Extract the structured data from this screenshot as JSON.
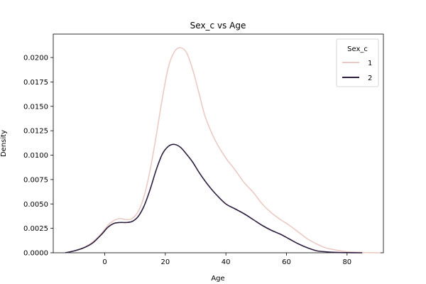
{
  "chart_data": {
    "type": "line",
    "title": "Sex_c vs Age",
    "xlabel": "Age",
    "ylabel": "Density",
    "xlim": [
      -17,
      92
    ],
    "ylim": [
      0,
      0.0224
    ],
    "xticks": [
      0,
      20,
      40,
      60,
      80
    ],
    "yticks": [
      0.0,
      0.0025,
      0.005,
      0.0075,
      0.01,
      0.0125,
      0.015,
      0.0175,
      0.02
    ],
    "ytick_labels": [
      "0.0000",
      "0.0025",
      "0.0050",
      "0.0075",
      "0.0100",
      "0.0125",
      "0.0150",
      "0.0175",
      "0.0200"
    ],
    "grid": false,
    "legend": {
      "title": "Sex_c",
      "position": "top-right"
    },
    "series": [
      {
        "name": "1",
        "color": "#ebcac4",
        "x": [
          -13,
          -10,
          -7,
          -4,
          -1,
          1,
          3,
          5,
          7,
          9,
          11,
          13,
          15,
          17,
          19,
          21,
          23,
          25,
          27,
          29,
          31,
          33,
          35,
          37,
          40,
          43,
          46,
          49,
          52,
          55,
          58,
          61,
          64,
          67,
          70,
          73,
          76,
          80,
          85,
          91
        ],
        "y": [
          0.0,
          0.0002,
          0.0005,
          0.0011,
          0.002,
          0.0028,
          0.0033,
          0.0035,
          0.0034,
          0.0035,
          0.0042,
          0.0058,
          0.0085,
          0.012,
          0.0158,
          0.019,
          0.0206,
          0.021,
          0.0205,
          0.0188,
          0.0165,
          0.0141,
          0.0125,
          0.0112,
          0.0097,
          0.0085,
          0.0072,
          0.0062,
          0.005,
          0.0041,
          0.0034,
          0.0028,
          0.0021,
          0.0014,
          0.0009,
          0.0005,
          0.0003,
          0.0001,
          3e-05,
          0.0
        ]
      },
      {
        "name": "2",
        "color": "#2d1e3e",
        "x": [
          -13,
          -10,
          -7,
          -4,
          -1,
          1,
          3,
          5,
          7,
          9,
          11,
          13,
          15,
          17,
          19,
          21,
          23,
          25,
          27,
          29,
          31,
          33,
          35,
          37,
          40,
          43,
          46,
          49,
          52,
          55,
          58,
          61,
          64,
          67,
          70,
          73,
          76,
          80,
          85
        ],
        "y": [
          0.0,
          0.0002,
          0.0005,
          0.001,
          0.0019,
          0.0026,
          0.003,
          0.0031,
          0.0031,
          0.0032,
          0.0037,
          0.0048,
          0.0065,
          0.0085,
          0.0101,
          0.0109,
          0.0111,
          0.0108,
          0.0101,
          0.0093,
          0.0083,
          0.0074,
          0.0066,
          0.0059,
          0.005,
          0.0045,
          0.004,
          0.0034,
          0.0028,
          0.0023,
          0.0019,
          0.0014,
          0.0009,
          0.0005,
          0.0002,
          0.0001,
          4e-05,
          1e-05,
          0.0
        ]
      }
    ]
  }
}
